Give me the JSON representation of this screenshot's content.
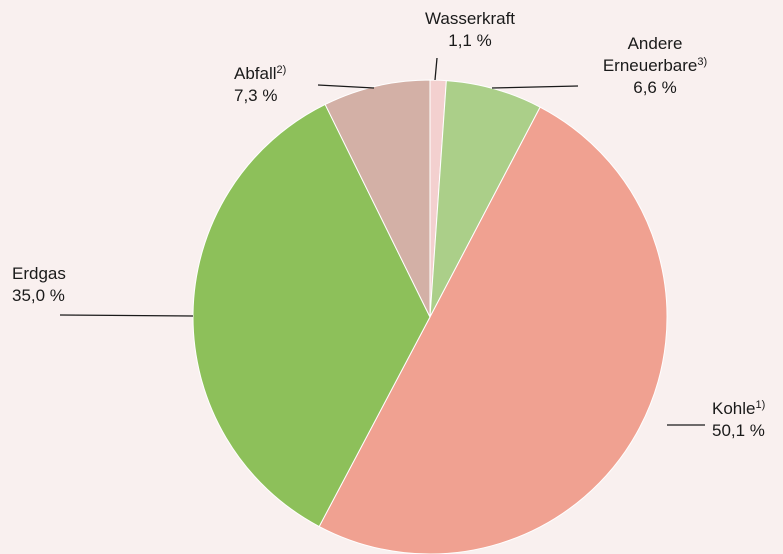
{
  "chart_data": {
    "type": "pie",
    "categories": [
      "Wasserkraft",
      "Andere Erneuerbare",
      "Kohle",
      "Erdgas",
      "Abfall"
    ],
    "category_notes": [
      null,
      "3)",
      "1)",
      null,
      "2)"
    ],
    "values": [
      1.1,
      6.6,
      50.1,
      35.0,
      7.3
    ],
    "value_labels": [
      "1,1 %",
      "6,6 %",
      "50,1 %",
      "35,0 %",
      "7,3 %"
    ],
    "colors": [
      "#f3d0cf",
      "#abcf89",
      "#f0a191",
      "#8dc05a",
      "#d3b0a6"
    ]
  }
}
